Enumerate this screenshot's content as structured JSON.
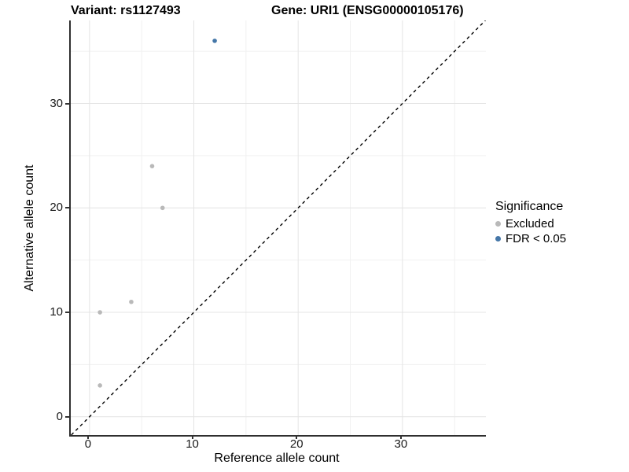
{
  "chart_data": {
    "type": "scatter",
    "title_left": "Variant: rs1127493",
    "title_right": "Gene: URI1 (ENSG00000105176)",
    "xlabel": "Reference allele count",
    "ylabel": "Alternative allele count",
    "xlim": [
      -1.8,
      38.0
    ],
    "ylim": [
      -1.75,
      37.95
    ],
    "x_ticks": [
      0,
      10,
      20,
      30
    ],
    "y_ticks": [
      0,
      10,
      20,
      30
    ],
    "x_minor_ticks": [
      5,
      15,
      25,
      35
    ],
    "y_minor_ticks": [
      5,
      15,
      25,
      35
    ],
    "grid": true,
    "legend_title": "Significance",
    "legend_position": "right",
    "identity_line": {
      "type": "dashed",
      "slope": 1,
      "intercept": 0
    },
    "series": [
      {
        "name": "Excluded",
        "color": "#b9b9b9",
        "points": [
          [
            1,
            3
          ],
          [
            1,
            10
          ],
          [
            4,
            11
          ],
          [
            6,
            24
          ],
          [
            7,
            20
          ]
        ]
      },
      {
        "name": "FDR < 0.05",
        "color": "#4577a8",
        "points": [
          [
            12,
            36
          ]
        ]
      }
    ]
  },
  "colors": {
    "background": "#ffffff",
    "grid_major": "#e4e4e4",
    "grid_minor": "#f1f1f1",
    "axis_line": "#2f2f2f",
    "identity_line": "#000000",
    "excluded_point": "#b9b9b9",
    "significant_point": "#4577a8"
  }
}
